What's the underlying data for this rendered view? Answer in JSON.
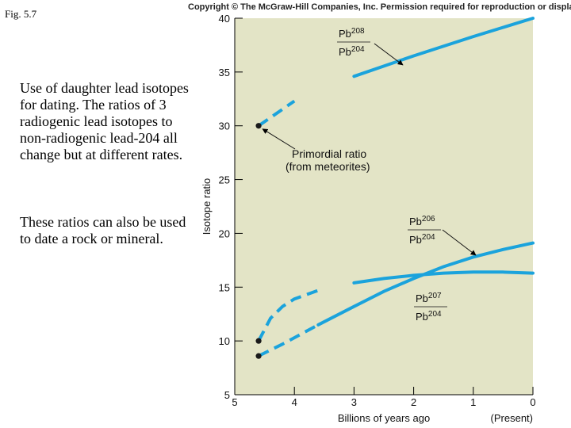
{
  "figure_label": "Fig. 5.7",
  "description": [
    "Use of daughter lead isotopes for dating. The ratios of 3 radiogenic lead isotopes to non-radiogenic lead-204 all change but at different rates.",
    "These ratios can also be used to date a rock or mineral."
  ],
  "copyright": "Copyright © The McGraw-Hill Companies, Inc. Permission required for reproduction or display.",
  "chart_data": {
    "type": "line",
    "xlabel": "Billions of years ago",
    "ylabel": "Isotope ratio",
    "x_reversed": true,
    "xlim": [
      5,
      0
    ],
    "ylim": [
      5,
      40
    ],
    "xticks": [
      5,
      4,
      3,
      2,
      1,
      0
    ],
    "yticks": [
      5,
      10,
      15,
      20,
      25,
      30,
      35,
      40
    ],
    "present_label": "(Present)",
    "background_color": "#e3e4c6",
    "line_color": "#1ba3dc",
    "series": [
      {
        "label_top": "Pb208",
        "label_bottom": "Pb204",
        "start": [
          4.6,
          30
        ],
        "points": [
          [
            4.6,
            30
          ],
          [
            4.0,
            32.3
          ],
          [
            3.0,
            34.6
          ],
          [
            2.0,
            36.5
          ],
          [
            1.0,
            38.3
          ],
          [
            0.0,
            40
          ]
        ]
      },
      {
        "label_top": "Pb206",
        "label_bottom": "Pb204",
        "start": [
          4.6,
          8.6
        ],
        "points": [
          [
            4.6,
            8.6
          ],
          [
            4.2,
            9.7
          ],
          [
            3.6,
            11.5
          ],
          [
            3.0,
            13.2
          ],
          [
            2.5,
            14.6
          ],
          [
            2.0,
            15.8
          ],
          [
            1.5,
            16.9
          ],
          [
            1.0,
            17.8
          ],
          [
            0.5,
            18.5
          ],
          [
            0.0,
            19.1
          ]
        ]
      },
      {
        "label_top": "Pb207",
        "label_bottom": "Pb204",
        "start": [
          4.6,
          10
        ],
        "points": [
          [
            4.6,
            10
          ],
          [
            4.4,
            12.1
          ],
          [
            4.2,
            13.2
          ],
          [
            4.0,
            13.9
          ],
          [
            3.6,
            14.7
          ],
          [
            3.0,
            15.4
          ],
          [
            2.5,
            15.8
          ],
          [
            2.0,
            16.1
          ],
          [
            1.5,
            16.3
          ],
          [
            1.0,
            16.4
          ],
          [
            0.5,
            16.4
          ],
          [
            0.0,
            16.3
          ]
        ]
      }
    ],
    "annotations": [
      {
        "text": [
          "Primordial ratio",
          "(from meteorites)"
        ],
        "point": [
          4.6,
          30
        ]
      }
    ]
  }
}
